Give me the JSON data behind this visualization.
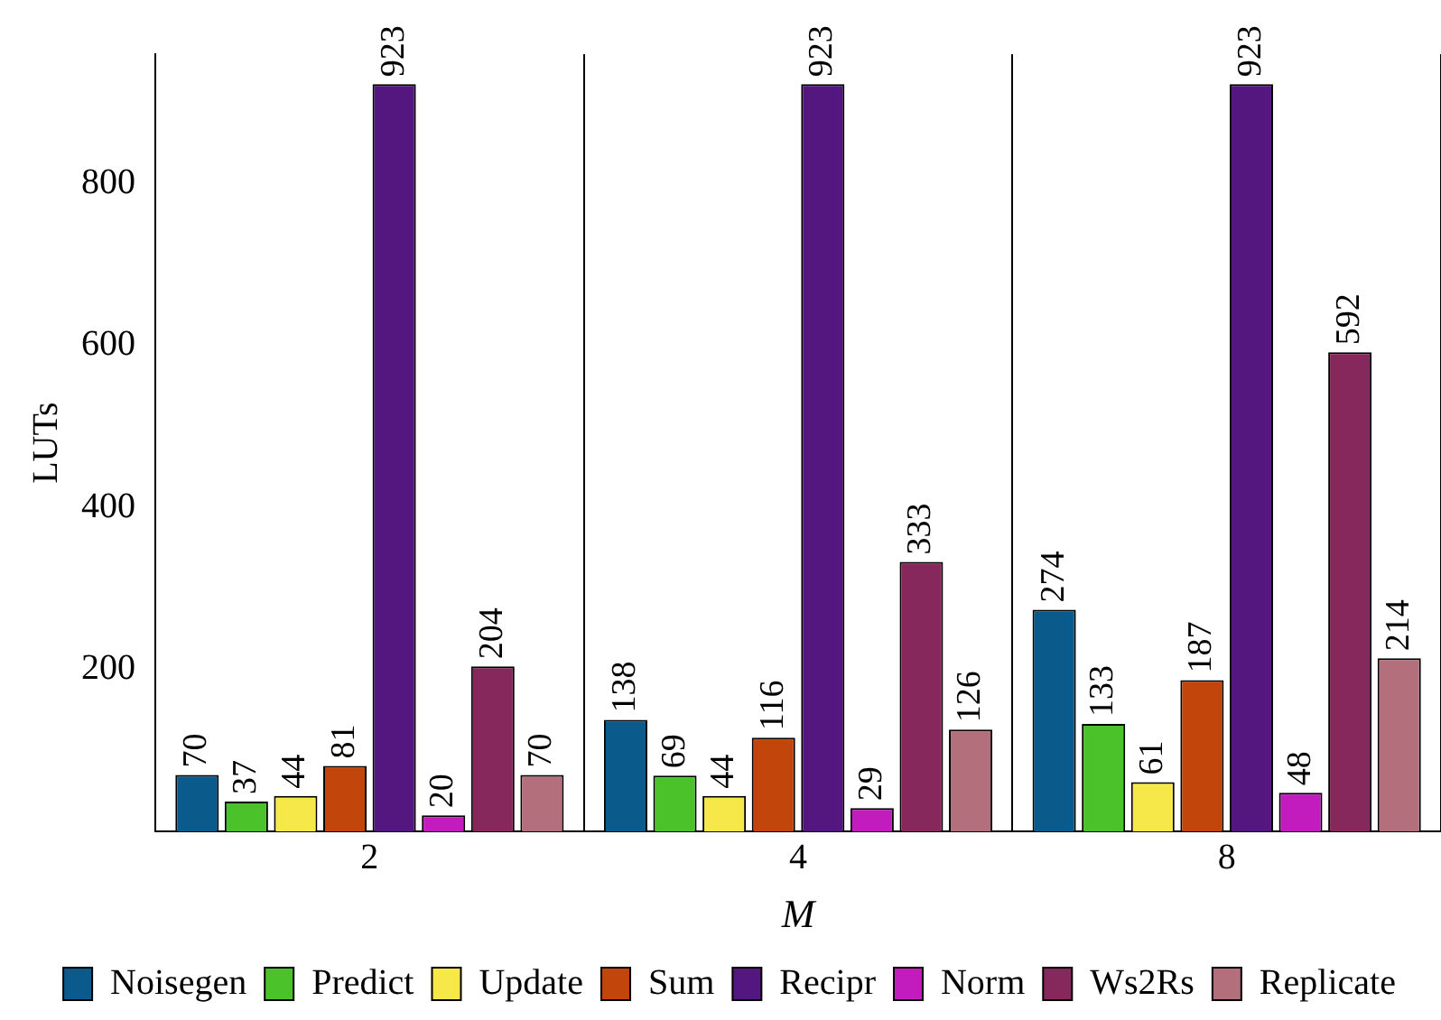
{
  "chart_data": {
    "type": "bar",
    "xlabel": "M",
    "ylabel": "LUTs",
    "categories": [
      "2",
      "4",
      "8"
    ],
    "series": [
      {
        "name": "Noisegen",
        "color": "#0b5a8c",
        "values": [
          70,
          138,
          274
        ]
      },
      {
        "name": "Predict",
        "color": "#4cc22a",
        "values": [
          37,
          69,
          133
        ]
      },
      {
        "name": "Update",
        "color": "#f7e84a",
        "values": [
          44,
          44,
          61
        ]
      },
      {
        "name": "Sum",
        "color": "#c2450c",
        "values": [
          81,
          116,
          187
        ]
      },
      {
        "name": "Recipr",
        "color": "#54167f",
        "values": [
          923,
          923,
          923
        ]
      },
      {
        "name": "Norm",
        "color": "#c21cbf",
        "values": [
          20,
          29,
          48
        ]
      },
      {
        "name": "Ws2Rs",
        "color": "#86285b",
        "values": [
          204,
          333,
          592
        ]
      },
      {
        "name": "Replicate",
        "color": "#b36f7c",
        "values": [
          70,
          126,
          214
        ]
      }
    ],
    "ylim": [
      0,
      960
    ],
    "yticks": [
      200,
      400,
      600,
      800
    ],
    "grid": "x",
    "legend": "bottom",
    "data_labels": true
  }
}
